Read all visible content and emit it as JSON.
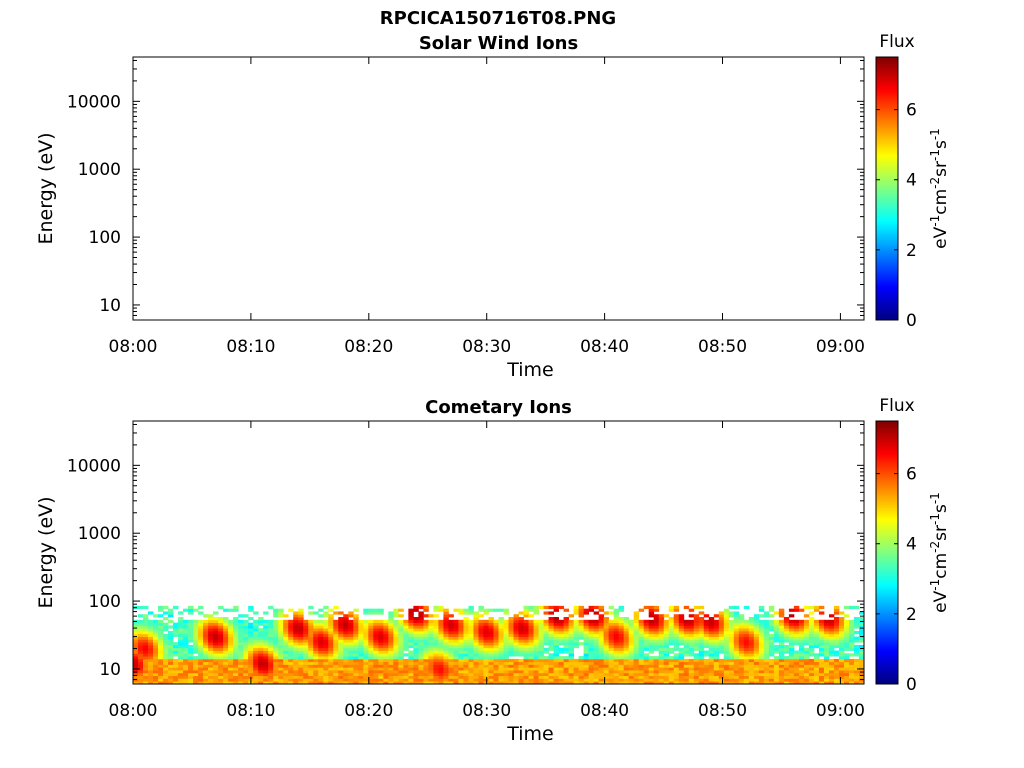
{
  "figure": {
    "title": "RPCICA150716T08.PNG"
  },
  "colormap": {
    "name": "jet",
    "stops": [
      "#00007f",
      "#0000ff",
      "#0080ff",
      "#00ffff",
      "#80ff80",
      "#ffff00",
      "#ff8000",
      "#ff0000",
      "#7f0000"
    ]
  },
  "chart_data": [
    {
      "type": "heatmap",
      "title": "Solar Wind Ions",
      "xlabel": "Time",
      "ylabel": "Energy (eV)",
      "y_scale": "log",
      "ylim": [
        6,
        45000
      ],
      "xlim": [
        "08:00",
        "09:02"
      ],
      "x_ticks": [
        "08:00",
        "08:10",
        "08:20",
        "08:30",
        "08:40",
        "08:50",
        "09:00"
      ],
      "y_ticks": [
        {
          "value": 10,
          "label": "10"
        },
        {
          "value": 100,
          "label": "100"
        },
        {
          "value": 1000,
          "label": "1000"
        },
        {
          "value": 10000,
          "label": "10000"
        }
      ],
      "colorbar": {
        "title": "Flux",
        "unit_label": "eV-1cm-2sr-1s-1",
        "range": [
          0,
          7.5
        ],
        "ticks": [
          0,
          2,
          4,
          6
        ],
        "tick_labels": [
          "0",
          "2",
          "4",
          "6"
        ]
      },
      "data": []
    },
    {
      "type": "heatmap",
      "title": "Cometary Ions",
      "xlabel": "Time",
      "ylabel": "Energy (eV)",
      "y_scale": "log",
      "ylim": [
        6,
        45000
      ],
      "xlim": [
        "08:00",
        "09:02"
      ],
      "x_ticks": [
        "08:00",
        "08:10",
        "08:20",
        "08:30",
        "08:40",
        "08:50",
        "09:00"
      ],
      "y_ticks": [
        {
          "value": 10,
          "label": "10"
        },
        {
          "value": 100,
          "label": "100"
        },
        {
          "value": 1000,
          "label": "1000"
        },
        {
          "value": 10000,
          "label": "10000"
        }
      ],
      "colorbar": {
        "title": "Flux",
        "unit_label": "eV-1cm-2sr-1s-1",
        "range": [
          0,
          7.5
        ],
        "ticks": [
          0,
          2,
          4,
          6
        ],
        "tick_labels": [
          "0",
          "2",
          "4",
          "6"
        ]
      },
      "data_extent": {
        "energy_max_eV": 85,
        "energy_min_eV": 6
      },
      "peaks": [
        {
          "time": "08:00",
          "energy_eV": 12,
          "flux": 7.0
        },
        {
          "time": "08:01",
          "energy_eV": 20,
          "flux": 6.6
        },
        {
          "time": "08:07",
          "energy_eV": 30,
          "flux": 7.0
        },
        {
          "time": "08:11",
          "energy_eV": 12,
          "flux": 7.0
        },
        {
          "time": "08:14",
          "energy_eV": 40,
          "flux": 7.0
        },
        {
          "time": "08:16",
          "energy_eV": 25,
          "flux": 6.8
        },
        {
          "time": "08:18",
          "energy_eV": 45,
          "flux": 7.0
        },
        {
          "time": "08:21",
          "energy_eV": 30,
          "flux": 6.8
        },
        {
          "time": "08:24",
          "energy_eV": 65,
          "flux": 7.2
        },
        {
          "time": "08:26",
          "energy_eV": 10,
          "flux": 6.5
        },
        {
          "time": "08:27",
          "energy_eV": 45,
          "flux": 6.9
        },
        {
          "time": "08:30",
          "energy_eV": 35,
          "flux": 6.8
        },
        {
          "time": "08:33",
          "energy_eV": 40,
          "flux": 6.9
        },
        {
          "time": "08:36",
          "energy_eV": 60,
          "flux": 7.2
        },
        {
          "time": "08:39",
          "energy_eV": 60,
          "flux": 7.2
        },
        {
          "time": "08:41",
          "energy_eV": 30,
          "flux": 6.6
        },
        {
          "time": "08:44",
          "energy_eV": 55,
          "flux": 7.1
        },
        {
          "time": "08:47",
          "energy_eV": 55,
          "flux": 7.1
        },
        {
          "time": "08:49",
          "energy_eV": 50,
          "flux": 7.0
        },
        {
          "time": "08:52",
          "energy_eV": 25,
          "flux": 6.5
        },
        {
          "time": "08:56",
          "energy_eV": 60,
          "flux": 7.1
        },
        {
          "time": "08:59",
          "energy_eV": 55,
          "flux": 7.0
        }
      ]
    }
  ]
}
